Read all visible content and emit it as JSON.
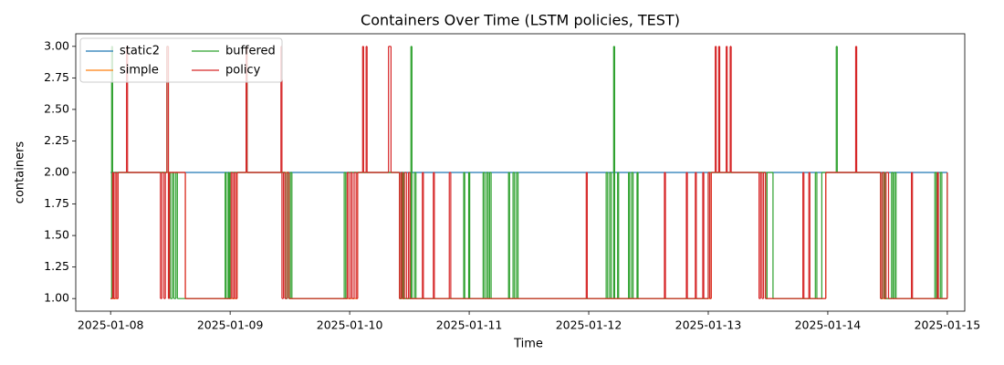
{
  "chart_data": {
    "type": "line",
    "drawstyle": "steps-post",
    "title": "Containers Over Time (LSTM policies, TEST)",
    "x_label": "Time",
    "y_label": "containers",
    "xlim": [
      "2025-01-07 17:00",
      "2025-01-15 03:30"
    ],
    "xticks": [
      "2025-01-08",
      "2025-01-09",
      "2025-01-10",
      "2025-01-11",
      "2025-01-12",
      "2025-01-13",
      "2025-01-14",
      "2025-01-15"
    ],
    "ylim": [
      0.9,
      3.1
    ],
    "yticks": [
      {
        "value": 1,
        "label": "1.00"
      },
      {
        "value": 1.25,
        "label": "1.25"
      },
      {
        "value": 1.5,
        "label": "1.50"
      },
      {
        "value": 1.75,
        "label": "1.75"
      },
      {
        "value": 2,
        "label": "2.00"
      },
      {
        "value": 2.25,
        "label": "2.25"
      },
      {
        "value": 2.5,
        "label": "2.50"
      },
      {
        "value": 2.75,
        "label": "2.75"
      },
      {
        "value": 3,
        "label": "3.00"
      }
    ],
    "grid": false,
    "legend": "upper left",
    "series": [
      {
        "name": "static2",
        "color": "#1f77b4",
        "x": [
          "2025-01-08 00:00",
          "2025-01-15 00:00"
        ],
        "values": [
          2,
          2
        ]
      },
      {
        "name": "simple",
        "color": "#ff7f0e",
        "x": [
          "2025-01-08 00:00",
          "2025-01-08 01:30",
          "2025-01-08 15:00",
          "2025-01-09 01:24",
          "2025-01-09 11:48",
          "2025-01-10 01:36",
          "2025-01-10 10:00",
          "2025-01-13 00:36",
          "2025-01-13 11:30",
          "2025-01-13 23:36",
          "2025-01-14 10:36",
          "2025-01-15 00:00"
        ],
        "values": [
          1,
          2,
          1,
          2,
          1,
          2,
          1,
          2,
          1,
          2,
          1,
          2
        ]
      },
      {
        "name": "buffered",
        "color": "#2ca02c",
        "x": [
          "2025-01-08 00:00",
          "2025-01-08 00:12",
          "2025-01-08 00:24",
          "2025-01-08 11:18",
          "2025-01-08 11:36",
          "2025-01-08 12:00",
          "2025-01-08 12:24",
          "2025-01-08 12:42",
          "2025-01-08 13:06",
          "2025-01-08 13:24",
          "2025-01-08 23:00",
          "2025-01-08 23:12",
          "2025-01-08 23:36",
          "2025-01-08 23:48",
          "2025-01-09 00:00",
          "2025-01-09 03:12",
          "2025-01-09 03:24",
          "2025-01-09 11:06",
          "2025-01-09 11:30",
          "2025-01-09 11:48",
          "2025-01-09 12:06",
          "2025-01-09 12:24",
          "2025-01-09 22:54",
          "2025-01-09 23:12",
          "2025-01-09 23:30",
          "2025-01-10 10:00",
          "2025-01-10 10:30",
          "2025-01-10 10:48",
          "2025-01-10 12:18",
          "2025-01-10 12:30",
          "2025-01-10 13:00",
          "2025-01-10 13:18",
          "2025-01-10 22:54",
          "2025-01-10 23:06",
          "2025-01-10 23:54",
          "2025-01-11 00:06",
          "2025-01-11 02:48",
          "2025-01-11 03:06",
          "2025-01-11 03:30",
          "2025-01-11 03:48",
          "2025-01-11 04:06",
          "2025-01-11 04:24",
          "2025-01-11 07:54",
          "2025-01-11 08:06",
          "2025-01-11 08:48",
          "2025-01-11 09:06",
          "2025-01-11 09:30",
          "2025-01-11 09:48",
          "2025-01-12 03:30",
          "2025-01-12 03:48",
          "2025-01-12 04:12",
          "2025-01-12 04:30",
          "2025-01-12 05:00",
          "2025-01-12 05:12",
          "2025-01-12 05:48",
          "2025-01-12 06:00",
          "2025-01-12 08:00",
          "2025-01-12 08:12",
          "2025-01-12 08:36",
          "2025-01-12 08:54",
          "2025-01-12 09:42",
          "2025-01-12 09:54",
          "2025-01-13 00:00",
          "2025-01-13 11:30",
          "2025-01-13 11:48",
          "2025-01-13 13:00",
          "2025-01-13 21:30",
          "2025-01-13 21:48",
          "2025-01-13 22:48",
          "2025-01-14 01:42",
          "2025-01-14 01:54",
          "2025-01-14 10:36",
          "2025-01-14 11:00",
          "2025-01-14 11:30",
          "2025-01-14 12:48",
          "2025-01-14 13:06",
          "2025-01-14 13:24",
          "2025-01-14 13:42",
          "2025-01-14 21:30",
          "2025-01-14 21:48",
          "2025-01-14 22:36",
          "2025-01-14 22:54",
          "2025-01-15 00:00"
        ],
        "values": [
          1,
          3,
          2,
          3,
          2,
          1,
          2,
          1,
          2,
          1,
          2,
          1,
          2,
          1,
          2,
          3,
          2,
          1,
          2,
          1,
          2,
          1,
          2,
          1,
          2,
          1,
          2,
          1,
          3,
          1,
          2,
          1,
          2,
          1,
          2,
          1,
          2,
          1,
          2,
          1,
          2,
          1,
          2,
          1,
          2,
          1,
          2,
          1,
          2,
          1,
          2,
          1,
          3,
          1,
          2,
          1,
          2,
          1,
          2,
          1,
          2,
          1,
          2,
          1,
          2,
          1,
          2,
          1,
          2,
          3,
          2,
          1,
          2,
          1,
          2,
          1,
          2,
          1,
          2,
          1,
          2,
          1,
          2
        ]
      },
      {
        "name": "policy",
        "color": "#d62728",
        "x": [
          "2025-01-08 00:00",
          "2025-01-08 00:24",
          "2025-01-08 00:36",
          "2025-01-08 00:54",
          "2025-01-08 01:12",
          "2025-01-08 01:30",
          "2025-01-08 03:12",
          "2025-01-08 03:24",
          "2025-01-08 10:00",
          "2025-01-08 10:18",
          "2025-01-08 10:42",
          "2025-01-08 11:00",
          "2025-01-08 11:18",
          "2025-01-08 11:36",
          "2025-01-08 11:48",
          "2025-01-08 15:00",
          "2025-01-09 00:12",
          "2025-01-09 00:30",
          "2025-01-09 00:48",
          "2025-01-09 01:06",
          "2025-01-09 01:24",
          "2025-01-09 03:12",
          "2025-01-09 03:24",
          "2025-01-09 10:12",
          "2025-01-09 10:24",
          "2025-01-09 10:42",
          "2025-01-09 11:00",
          "2025-01-09 11:24",
          "2025-01-09 11:48",
          "2025-01-09 23:30",
          "2025-01-09 23:48",
          "2025-01-10 00:12",
          "2025-01-10 00:30",
          "2025-01-10 00:54",
          "2025-01-10 01:18",
          "2025-01-10 01:36",
          "2025-01-10 02:36",
          "2025-01-10 02:48",
          "2025-01-10 03:18",
          "2025-01-10 03:30",
          "2025-01-10 07:48",
          "2025-01-10 08:18",
          "2025-01-10 10:00",
          "2025-01-10 10:18",
          "2025-01-10 10:36",
          "2025-01-10 11:00",
          "2025-01-10 11:24",
          "2025-01-10 11:48",
          "2025-01-10 12:06",
          "2025-01-10 14:36",
          "2025-01-10 14:48",
          "2025-01-10 16:48",
          "2025-01-10 17:00",
          "2025-01-10 20:00",
          "2025-01-10 20:18",
          "2025-01-11 23:30",
          "2025-01-11 23:42",
          "2025-01-12 15:12",
          "2025-01-12 15:24",
          "2025-01-12 19:36",
          "2025-01-12 19:48",
          "2025-01-12 21:24",
          "2025-01-12 21:36",
          "2025-01-12 22:54",
          "2025-01-12 23:06",
          "2025-01-13 00:00",
          "2025-01-13 00:18",
          "2025-01-13 00:36",
          "2025-01-13 01:24",
          "2025-01-13 01:36",
          "2025-01-13 02:06",
          "2025-01-13 02:18",
          "2025-01-13 03:36",
          "2025-01-13 03:48",
          "2025-01-13 04:24",
          "2025-01-13 04:36",
          "2025-01-13 10:12",
          "2025-01-13 10:30",
          "2025-01-13 10:48",
          "2025-01-13 11:06",
          "2025-01-13 11:30",
          "2025-01-13 19:00",
          "2025-01-13 19:12",
          "2025-01-13 20:12",
          "2025-01-13 20:24",
          "2025-01-13 23:36",
          "2025-01-14 05:36",
          "2025-01-14 05:48",
          "2025-01-14 10:36",
          "2025-01-14 10:54",
          "2025-01-14 11:18",
          "2025-01-14 11:42",
          "2025-01-14 12:12",
          "2025-01-14 16:48",
          "2025-01-14 17:00",
          "2025-01-14 22:00",
          "2025-01-14 22:12",
          "2025-01-15 00:00"
        ],
        "values": [
          1,
          2,
          1,
          2,
          1,
          2,
          3,
          2,
          1,
          2,
          1,
          2,
          3,
          1,
          2,
          1,
          2,
          1,
          2,
          1,
          2,
          3,
          2,
          3,
          1,
          2,
          1,
          2,
          1,
          2,
          1,
          2,
          1,
          2,
          1,
          2,
          3,
          2,
          3,
          2,
          3,
          2,
          1,
          2,
          1,
          2,
          1,
          2,
          1,
          2,
          1,
          2,
          1,
          2,
          1,
          2,
          1,
          2,
          1,
          2,
          1,
          2,
          1,
          2,
          1,
          2,
          1,
          2,
          3,
          2,
          3,
          2,
          3,
          2,
          3,
          2,
          1,
          2,
          1,
          2,
          1,
          2,
          1,
          2,
          1,
          2,
          3,
          2,
          1,
          2,
          1,
          2,
          1,
          2,
          1,
          2,
          1,
          2
        ]
      }
    ]
  }
}
